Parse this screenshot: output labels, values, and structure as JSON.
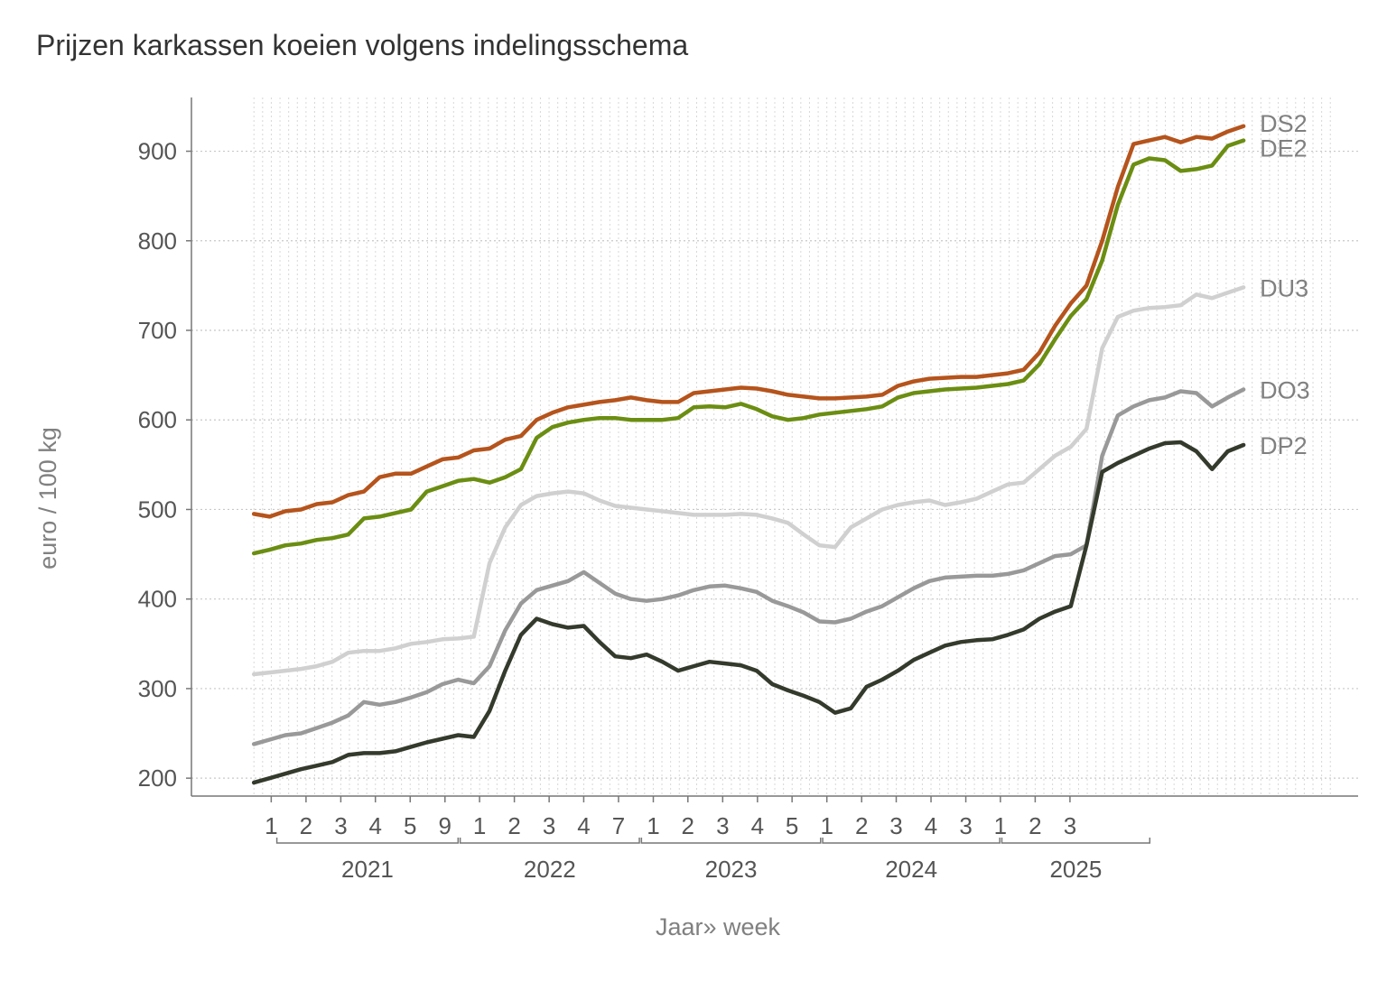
{
  "chart_data": {
    "type": "line",
    "title": "Prijzen karkassen koeien volgens indelingsschema",
    "xlabel": "Jaar» week",
    "ylabel": "euro / 100 kg",
    "ylim": [
      180,
      960
    ],
    "yticks": [
      200,
      300,
      400,
      500,
      600,
      700,
      800,
      900
    ],
    "grid": true,
    "legend": "labels at line ends (right)",
    "x_start": 2021.0,
    "x_end": 2025.75,
    "x_range": [
      2020.7,
      2026.3
    ],
    "week_ticks": [
      {
        "x": 2021.083,
        "label": "1"
      },
      {
        "x": 2021.25,
        "label": "2"
      },
      {
        "x": 2021.417,
        "label": "3"
      },
      {
        "x": 2021.583,
        "label": "4"
      },
      {
        "x": 2021.75,
        "label": "5"
      },
      {
        "x": 2021.917,
        "label": "9"
      },
      {
        "x": 2022.083,
        "label": "1"
      },
      {
        "x": 2022.25,
        "label": "2"
      },
      {
        "x": 2022.417,
        "label": "3"
      },
      {
        "x": 2022.583,
        "label": "4"
      },
      {
        "x": 2022.75,
        "label": "7"
      },
      {
        "x": 2022.917,
        "label": "1"
      },
      {
        "x": 2023.083,
        "label": "2"
      },
      {
        "x": 2023.25,
        "label": "3"
      },
      {
        "x": 2023.417,
        "label": "4"
      },
      {
        "x": 2023.583,
        "label": "5"
      },
      {
        "x": 2023.75,
        "label": "1"
      },
      {
        "x": 2023.917,
        "label": "2"
      },
      {
        "x": 2024.083,
        "label": "3"
      },
      {
        "x": 2024.25,
        "label": "4"
      },
      {
        "x": 2024.417,
        "label": "3"
      },
      {
        "x": 2024.583,
        "label": "1"
      },
      {
        "x": 2024.75,
        "label": "2"
      },
      {
        "x": 2024.917,
        "label": "3"
      }
    ],
    "year_groups": [
      {
        "label": "2021",
        "from": 2021.11,
        "to": 2021.98
      },
      {
        "label": "2022",
        "from": 2021.99,
        "to": 2022.85
      },
      {
        "label": "2023",
        "from": 2022.86,
        "to": 2023.72
      },
      {
        "label": "2024",
        "from": 2023.73,
        "to": 2024.58
      },
      {
        "label": "2025",
        "from": 2024.59,
        "to": 2025.3
      }
    ],
    "series": [
      {
        "name": "DS2",
        "color": "#b5541c",
        "values": [
          495,
          492,
          498,
          500,
          506,
          508,
          516,
          520,
          536,
          540,
          540,
          548,
          556,
          558,
          566,
          568,
          578,
          582,
          600,
          608,
          614,
          617,
          620,
          622,
          625,
          622,
          620,
          620,
          630,
          632,
          634,
          636,
          635,
          632,
          628,
          626,
          624,
          624,
          625,
          626,
          628,
          638,
          643,
          646,
          647,
          648,
          648,
          650,
          652,
          656,
          675,
          705,
          730,
          750,
          800,
          860,
          908,
          912,
          916,
          910,
          916,
          914,
          922,
          928
        ]
      },
      {
        "name": "DE2",
        "color": "#6b8e12",
        "values": [
          451,
          455,
          460,
          462,
          466,
          468,
          472,
          490,
          492,
          496,
          500,
          520,
          526,
          532,
          534,
          530,
          536,
          545,
          580,
          592,
          597,
          600,
          602,
          602,
          600,
          600,
          600,
          602,
          614,
          615,
          614,
          618,
          612,
          604,
          600,
          602,
          606,
          608,
          610,
          612,
          615,
          625,
          630,
          632,
          634,
          635,
          636,
          638,
          640,
          644,
          662,
          690,
          716,
          735,
          778,
          840,
          885,
          892,
          890,
          878,
          880,
          884,
          906,
          912
        ]
      },
      {
        "name": "DU3",
        "color": "#d0d0d0",
        "values": [
          316,
          318,
          320,
          322,
          325,
          330,
          340,
          342,
          342,
          345,
          350,
          352,
          355,
          356,
          358,
          440,
          480,
          505,
          515,
          518,
          520,
          518,
          510,
          504,
          502,
          500,
          498,
          496,
          494,
          494,
          494,
          495,
          494,
          490,
          485,
          472,
          460,
          458,
          480,
          490,
          500,
          505,
          508,
          510,
          505,
          508,
          512,
          520,
          528,
          530,
          545,
          560,
          570,
          590,
          680,
          715,
          722,
          725,
          726,
          728,
          740,
          736,
          742,
          748
        ]
      },
      {
        "name": "DO3",
        "color": "#999999",
        "values": [
          238,
          243,
          248,
          250,
          256,
          262,
          270,
          285,
          282,
          285,
          290,
          296,
          305,
          310,
          306,
          325,
          365,
          395,
          410,
          415,
          420,
          430,
          418,
          406,
          400,
          398,
          400,
          404,
          410,
          414,
          415,
          412,
          408,
          398,
          392,
          385,
          375,
          374,
          378,
          386,
          392,
          402,
          412,
          420,
          424,
          425,
          426,
          426,
          428,
          432,
          440,
          448,
          450,
          460,
          560,
          605,
          615,
          622,
          625,
          632,
          630,
          615,
          625,
          634
        ]
      },
      {
        "name": "DP2",
        "color": "#343a2c",
        "values": [
          195,
          200,
          205,
          210,
          214,
          218,
          226,
          228,
          228,
          230,
          235,
          240,
          244,
          248,
          246,
          275,
          320,
          360,
          378,
          372,
          368,
          370,
          352,
          336,
          334,
          338,
          330,
          320,
          325,
          330,
          328,
          326,
          320,
          305,
          298,
          292,
          285,
          273,
          278,
          302,
          310,
          320,
          332,
          340,
          348,
          352,
          354,
          355,
          360,
          366,
          378,
          386,
          392,
          460,
          542,
          552,
          560,
          568,
          574,
          575,
          565,
          545,
          565,
          572
        ]
      }
    ]
  }
}
